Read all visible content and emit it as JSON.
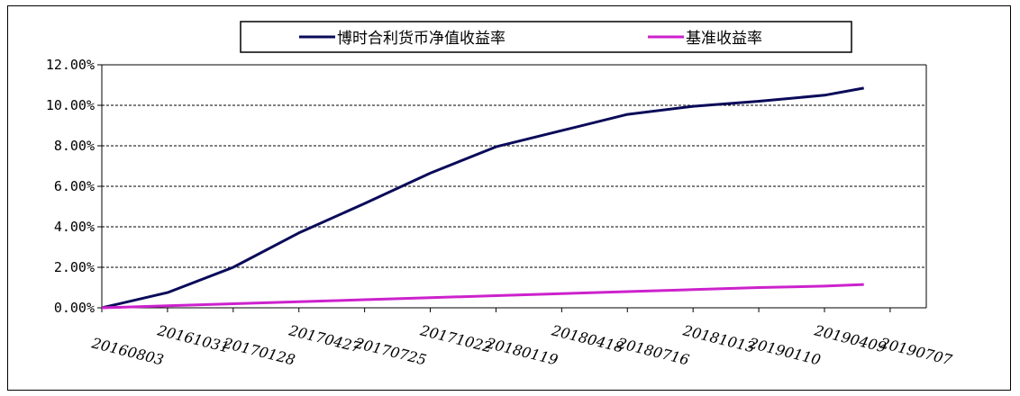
{
  "chart_data": {
    "type": "line",
    "title": "",
    "xlabel": "",
    "ylabel": "",
    "ylim": [
      0,
      12
    ],
    "grid": "horizontal-dashed",
    "legend_position": "top-center",
    "yticks": [
      "0.00%",
      "2.00%",
      "4.00%",
      "6.00%",
      "8.00%",
      "10.00%",
      "12.00%"
    ],
    "xticks": [
      "20160803",
      "20161031",
      "20170128",
      "20170427",
      "20170725",
      "20171022",
      "20180119",
      "20180418",
      "20180716",
      "20181013",
      "20190110",
      "20190409",
      "20190707"
    ],
    "x": [
      0,
      1,
      2,
      3,
      4,
      5,
      6,
      7,
      8,
      9,
      10,
      11,
      11.6
    ],
    "series": [
      {
        "name": "博时合利货币净值收益率",
        "color": "#0a0a5a",
        "values": [
          0.0,
          0.75,
          2.0,
          3.7,
          5.15,
          6.65,
          7.95,
          8.75,
          9.55,
          9.95,
          10.2,
          10.5,
          10.85
        ]
      },
      {
        "name": "基准收益率",
        "color": "#cc22cc",
        "values": [
          0.0,
          0.1,
          0.2,
          0.3,
          0.4,
          0.5,
          0.6,
          0.7,
          0.8,
          0.9,
          1.0,
          1.07,
          1.15
        ]
      }
    ]
  }
}
